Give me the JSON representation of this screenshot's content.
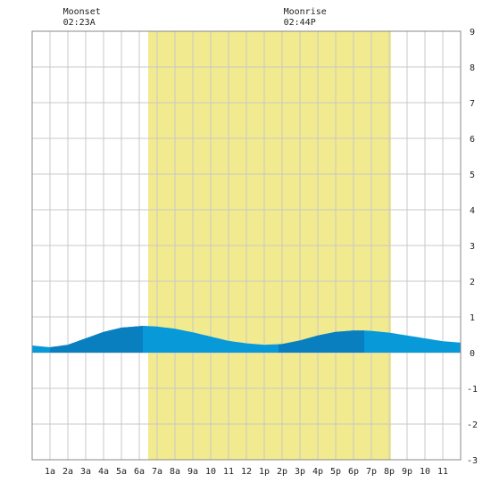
{
  "chart_data": {
    "type": "area",
    "title": "",
    "xlabel": "",
    "ylabel": "",
    "x_range_hours": [
      0,
      24
    ],
    "ylim": [
      -3,
      9
    ],
    "grid": true,
    "x_ticks": [
      {
        "label": "1a",
        "hour": 1
      },
      {
        "label": "2a",
        "hour": 2
      },
      {
        "label": "3a",
        "hour": 3
      },
      {
        "label": "4a",
        "hour": 4
      },
      {
        "label": "5a",
        "hour": 5
      },
      {
        "label": "6a",
        "hour": 6
      },
      {
        "label": "7a",
        "hour": 7
      },
      {
        "label": "8a",
        "hour": 8
      },
      {
        "label": "9a",
        "hour": 9
      },
      {
        "label": "10",
        "hour": 10
      },
      {
        "label": "11",
        "hour": 11
      },
      {
        "label": "12",
        "hour": 12
      },
      {
        "label": "1p",
        "hour": 13
      },
      {
        "label": "2p",
        "hour": 14
      },
      {
        "label": "3p",
        "hour": 15
      },
      {
        "label": "4p",
        "hour": 16
      },
      {
        "label": "5p",
        "hour": 17
      },
      {
        "label": "6p",
        "hour": 18
      },
      {
        "label": "7p",
        "hour": 19
      },
      {
        "label": "8p",
        "hour": 20
      },
      {
        "label": "9p",
        "hour": 21
      },
      {
        "label": "10",
        "hour": 22
      },
      {
        "label": "11",
        "hour": 23
      }
    ],
    "y_ticks": [
      9,
      8,
      7,
      6,
      5,
      4,
      3,
      2,
      1,
      0,
      -1,
      -2,
      -3
    ],
    "daylight": {
      "start_hour": 6.5,
      "end_hour": 20.1,
      "color": "#f2ea8e"
    },
    "tide_series": {
      "x_hours": [
        0,
        1,
        2,
        3,
        4,
        5,
        6,
        6.2,
        7,
        8,
        9,
        10,
        11,
        12,
        13,
        14,
        15,
        16,
        17,
        18,
        18.6,
        19,
        20,
        21,
        22,
        23,
        24
      ],
      "y": [
        0.2,
        0.15,
        0.22,
        0.4,
        0.58,
        0.7,
        0.74,
        0.75,
        0.73,
        0.67,
        0.57,
        0.45,
        0.33,
        0.26,
        0.22,
        0.24,
        0.34,
        0.48,
        0.58,
        0.62,
        0.62,
        0.61,
        0.56,
        0.48,
        0.4,
        0.32,
        0.28
      ],
      "color": "#0899d8",
      "rising_color": "#0a7fc0",
      "rising_intervals": [
        [
          1.0,
          6.2
        ],
        [
          13.8,
          18.6
        ]
      ]
    },
    "annotations": [
      {
        "title": "Moonset",
        "time": "02:23A",
        "hour": 2.38
      },
      {
        "title": "Moonrise",
        "time": "02:44P",
        "hour": 14.73
      }
    ]
  }
}
